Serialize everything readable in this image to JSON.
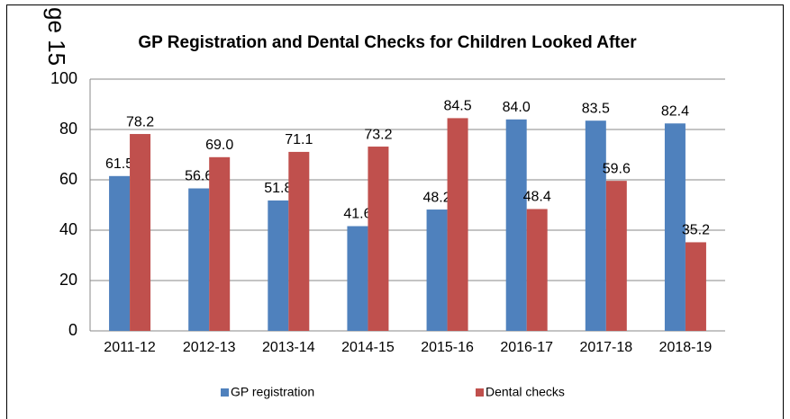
{
  "page_marker": "ge 15",
  "chart_data": {
    "type": "bar",
    "title": "GP Registration and Dental Checks for Children Looked After",
    "categories": [
      "2011-12",
      "2012-13",
      "2013-14",
      "2014-15",
      "2015-16",
      "2016-17",
      "2017-18",
      "2018-19"
    ],
    "series": [
      {
        "name": "GP registration",
        "color": "#4f81bd",
        "values": [
          61.5,
          56.6,
          51.8,
          41.6,
          48.2,
          84.0,
          83.5,
          82.4
        ],
        "value_labels": [
          "61.5",
          "56.6",
          "51.8",
          "41.6",
          "48.2",
          "84.0",
          "83.5",
          "82.4"
        ]
      },
      {
        "name": "Dental checks",
        "color": "#c0504d",
        "values": [
          78.2,
          69.0,
          71.1,
          73.2,
          84.5,
          48.4,
          59.6,
          35.2
        ],
        "value_labels": [
          "78.2",
          "69.0",
          "71.1",
          "73.2",
          "84.5",
          "48.4",
          "59.6",
          "35.2"
        ]
      }
    ],
    "ylim": [
      0,
      100
    ],
    "yticks": [
      0,
      20,
      40,
      60,
      80,
      100
    ],
    "grid": true,
    "legend": "bottom"
  }
}
